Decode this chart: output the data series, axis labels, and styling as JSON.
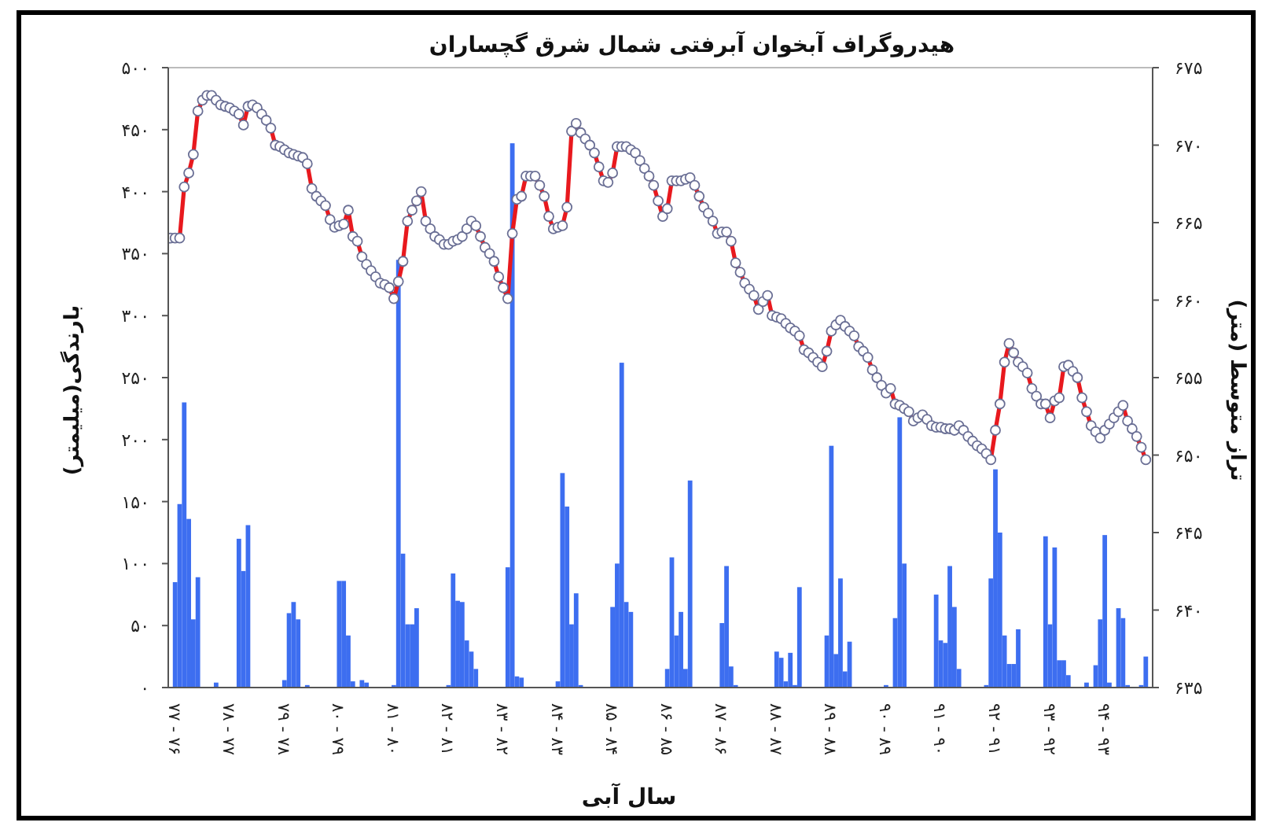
{
  "chart_data": {
    "type": "bar",
    "title": "هیدروگراف آبخوان آبرفتی شمال شرق گچساران",
    "xlabel": "سال آبی",
    "ylabel": "بارندگی(میلیمتر)",
    "y2label": "تراز متوسط (متر)",
    "categories": [
      null,
      "۷۷ - ۷۶",
      null,
      null,
      null,
      null,
      null,
      null,
      null,
      null,
      null,
      null,
      null,
      "۷۸ - ۷۷",
      null,
      null,
      null,
      null,
      null,
      null,
      null,
      null,
      null,
      null,
      null,
      "۷۹ - ۷۸",
      null,
      null,
      null,
      null,
      null,
      null,
      null,
      null,
      null,
      null,
      null,
      "۸۰ - ۷۹",
      null,
      null,
      null,
      null,
      null,
      null,
      null,
      null,
      null,
      null,
      null,
      "۸۱ - ۸۰",
      null,
      null,
      null,
      null,
      null,
      null,
      null,
      null,
      null,
      null,
      null,
      "۸۲ - ۸۱",
      null,
      null,
      null,
      null,
      null,
      null,
      null,
      null,
      null,
      null,
      null,
      "۸۳ - ۸۲",
      null,
      null,
      null,
      null,
      null,
      null,
      null,
      null,
      null,
      null,
      null,
      "۸۴ - ۸۳",
      null,
      null,
      null,
      null,
      null,
      null,
      null,
      null,
      null,
      null,
      null,
      "۸۵ - ۸۴",
      null,
      null,
      null,
      null,
      null,
      null,
      null,
      null,
      null,
      null,
      null,
      "۸۶ - ۸۵",
      null,
      null,
      null,
      null,
      null,
      null,
      null,
      null,
      null,
      null,
      null,
      "۸۷ - ۸۶",
      null,
      null,
      null,
      null,
      null,
      null,
      null,
      null,
      null,
      null,
      null,
      "۸۸ - ۸۷",
      null,
      null,
      null,
      null,
      null,
      null,
      null,
      null,
      null,
      null,
      null,
      "۸۹ - ۸۸",
      null,
      null,
      null,
      null,
      null,
      null,
      null,
      null,
      null,
      null,
      null,
      "۹۰ - ۸۹",
      null,
      null,
      null,
      null,
      null,
      null,
      null,
      null,
      null,
      null,
      null,
      "۹۱ - ۹۰",
      null,
      null,
      null,
      null,
      null,
      null,
      null,
      null,
      null,
      null,
      null,
      "۹۲ - ۹۱",
      null,
      null,
      null,
      null,
      null,
      null,
      null,
      null,
      null,
      null,
      null,
      "۹۳ - ۹۲",
      null,
      null,
      null,
      null,
      null,
      null,
      null,
      null,
      null,
      null,
      null,
      "۹۴ - ۹۳",
      null,
      null,
      null,
      null,
      null,
      null,
      null,
      null,
      null,
      null
    ],
    "ylim": [
      0,
      500
    ],
    "yticks": [
      {
        "value": 0,
        "label": "۰"
      },
      {
        "value": 50,
        "label": "۵۰"
      },
      {
        "value": 100,
        "label": "۱۰۰"
      },
      {
        "value": 150,
        "label": "۱۵۰"
      },
      {
        "value": 200,
        "label": "۲۰۰"
      },
      {
        "value": 250,
        "label": "۲۵۰"
      },
      {
        "value": 300,
        "label": "۳۰۰"
      },
      {
        "value": 350,
        "label": "۳۵۰"
      },
      {
        "value": 400,
        "label": "۴۰۰"
      },
      {
        "value": 450,
        "label": "۴۵۰"
      },
      {
        "value": 500,
        "label": "۵۰۰"
      }
    ],
    "y2lim": [
      635,
      675
    ],
    "y2ticks": [
      {
        "value": 635,
        "label": "۶۳۵"
      },
      {
        "value": 640,
        "label": "۶۴۰"
      },
      {
        "value": 645,
        "label": "۶۴۵"
      },
      {
        "value": 650,
        "label": "۶۵۰"
      },
      {
        "value": 655,
        "label": "۶۵۵"
      },
      {
        "value": 660,
        "label": "۶۶۰"
      },
      {
        "value": 665,
        "label": "۶۶۵"
      },
      {
        "value": 670,
        "label": "۶۷۰"
      },
      {
        "value": 675,
        "label": "۶۷۵"
      }
    ],
    "marker": "circle",
    "series": [
      {
        "color": "#3d6ef0",
        "values": [
          null,
          85,
          148,
          230,
          136,
          55,
          89,
          null,
          null,
          null,
          4,
          null,
          null,
          null,
          null,
          120,
          94,
          131,
          null,
          null,
          null,
          null,
          null,
          null,
          null,
          6,
          60,
          69,
          55,
          null,
          2,
          null,
          null,
          null,
          null,
          null,
          null,
          86,
          86,
          42,
          5,
          null,
          6,
          4,
          null,
          null,
          null,
          null,
          null,
          2,
          345,
          108,
          51,
          51,
          64,
          null,
          null,
          null,
          null,
          null,
          null,
          2,
          92,
          70,
          69,
          38,
          29,
          15,
          null,
          null,
          null,
          null,
          null,
          null,
          97,
          439,
          9,
          8,
          null,
          null,
          null,
          null,
          null,
          null,
          null,
          5,
          173,
          146,
          51,
          76,
          2,
          null,
          null,
          null,
          null,
          null,
          null,
          65,
          100,
          262,
          69,
          61,
          null,
          null,
          null,
          null,
          null,
          null,
          null,
          15,
          105,
          42,
          61,
          15,
          167,
          null,
          null,
          null,
          null,
          null,
          null,
          52,
          98,
          17,
          2,
          null,
          null,
          null,
          null,
          null,
          null,
          null,
          null,
          29,
          24,
          5,
          28,
          2,
          81,
          null,
          null,
          null,
          null,
          null,
          42,
          195,
          27,
          88,
          13,
          37,
          null,
          null,
          null,
          null,
          null,
          null,
          null,
          2,
          null,
          56,
          218,
          100,
          null,
          null,
          null,
          null,
          null,
          null,
          75,
          38,
          36,
          98,
          65,
          15,
          null,
          null,
          null,
          null,
          null,
          2,
          88,
          176,
          125,
          42,
          19,
          19,
          47,
          null,
          null,
          null,
          null,
          null,
          122,
          51,
          113,
          22,
          22,
          10,
          null,
          null,
          null,
          4,
          null,
          18,
          55,
          123,
          4,
          null,
          64,
          56,
          2,
          null,
          null,
          2,
          25,
          null
        ]
      },
      {
        "type": "line",
        "axis": "y2",
        "color": "#e8191e",
        "values": [
          664.0,
          664.0,
          664.0,
          667.3,
          668.2,
          669.4,
          672.2,
          672.9,
          673.2,
          673.2,
          672.9,
          672.6,
          672.5,
          672.4,
          672.2,
          672.0,
          671.3,
          672.5,
          672.6,
          672.4,
          672.0,
          671.6,
          671.1,
          670.0,
          669.9,
          669.7,
          669.5,
          669.4,
          669.3,
          669.2,
          668.8,
          667.2,
          666.7,
          666.4,
          666.1,
          665.2,
          664.7,
          664.8,
          664.9,
          665.8,
          664.1,
          663.8,
          662.8,
          662.3,
          661.9,
          661.5,
          661.1,
          661.0,
          660.8,
          660.1,
          661.2,
          662.5,
          665.1,
          665.8,
          666.4,
          667.0,
          665.1,
          664.6,
          664.1,
          663.9,
          663.6,
          663.6,
          663.8,
          663.9,
          664.1,
          664.6,
          665.1,
          664.8,
          664.1,
          663.4,
          663.0,
          662.5,
          661.5,
          660.8,
          660.1,
          664.3,
          666.5,
          666.7,
          668.0,
          668.0,
          668.0,
          667.4,
          666.7,
          665.4,
          664.6,
          664.7,
          664.8,
          666.0,
          670.9,
          671.4,
          670.8,
          670.4,
          670.0,
          669.5,
          668.6,
          667.7,
          667.6,
          668.2,
          669.9,
          669.9,
          669.9,
          669.7,
          669.5,
          669.0,
          668.5,
          668.0,
          667.4,
          666.4,
          665.4,
          665.9,
          667.7,
          667.7,
          667.7,
          667.8,
          667.9,
          667.4,
          666.7,
          666.0,
          665.6,
          665.1,
          664.3,
          664.4,
          664.4,
          663.8,
          662.4,
          661.8,
          661.1,
          660.7,
          660.3,
          659.4,
          659.9,
          660.3,
          659.0,
          658.9,
          658.8,
          658.5,
          658.2,
          658.0,
          657.7,
          656.8,
          656.6,
          656.3,
          656.0,
          655.7,
          656.7,
          658.0,
          658.4,
          658.7,
          658.3,
          658.0,
          657.7,
          657.0,
          656.7,
          656.3,
          655.5,
          655.0,
          654.5,
          654.0,
          654.3,
          653.3,
          653.2,
          653.0,
          652.8,
          652.2,
          652.4,
          652.6,
          652.3,
          651.9,
          651.8,
          651.8,
          651.7,
          651.7,
          651.6,
          651.9,
          651.6,
          651.2,
          650.9,
          650.6,
          650.4,
          650.1,
          649.7,
          651.6,
          653.3,
          656.0,
          657.2,
          656.6,
          656.0,
          655.7,
          655.3,
          654.3,
          653.8,
          653.3,
          653.3,
          652.4,
          653.5,
          653.7,
          655.7,
          655.8,
          655.4,
          655.0,
          653.7,
          652.8,
          651.9,
          651.5,
          651.1,
          651.6,
          652.0,
          652.4,
          652.8,
          653.2,
          652.2,
          651.7,
          651.2,
          650.5,
          649.7,
          null
        ]
      }
    ]
  }
}
